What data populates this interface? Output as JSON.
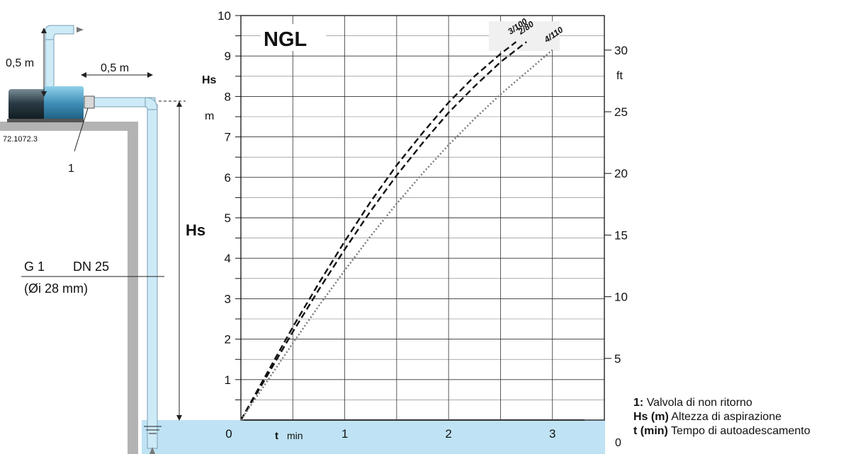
{
  "diagram": {
    "pump_code": "72.1072.3",
    "height_label_left": "0,5 m",
    "length_label_top": "0,5 m",
    "valve_marker": "1",
    "suction_label": "Hs",
    "pipe_thread": "G 1",
    "pipe_dn": "DN 25",
    "pipe_inner_diameter": "(Øi 28 mm)"
  },
  "chart_data": {
    "type": "line",
    "title": "NGL",
    "xlabel": "t",
    "xunit": "min",
    "ylabel": "Hs",
    "yunit": "m",
    "y2unit": "ft",
    "xlim": [
      0,
      3.5
    ],
    "ylim": [
      0,
      10
    ],
    "y2lim": [
      0,
      32.8
    ],
    "x_ticks": [
      0,
      1,
      2,
      3
    ],
    "y_ticks": [
      1,
      2,
      3,
      4,
      5,
      6,
      7,
      8,
      9,
      10
    ],
    "y2_ticks": [
      5,
      10,
      15,
      20,
      25,
      30
    ],
    "grid": true,
    "series": [
      {
        "name": "3/100",
        "style": "dashed",
        "color": "#111111",
        "x": [
          0,
          0.25,
          0.5,
          0.75,
          1.0,
          1.25,
          1.5,
          1.75,
          2.0,
          2.25,
          2.5,
          2.65
        ],
        "y": [
          0,
          1.15,
          2.3,
          3.38,
          4.42,
          5.4,
          6.3,
          7.1,
          7.85,
          8.5,
          9.05,
          9.35
        ]
      },
      {
        "name": "2/80",
        "style": "dashed",
        "color": "#111111",
        "x": [
          0,
          0.25,
          0.5,
          0.75,
          1.0,
          1.25,
          1.5,
          1.75,
          2.0,
          2.25,
          2.5,
          2.75
        ],
        "y": [
          0,
          1.08,
          2.18,
          3.22,
          4.22,
          5.17,
          6.05,
          6.85,
          7.6,
          8.25,
          8.85,
          9.35
        ]
      },
      {
        "name": "4/110",
        "style": "dotted",
        "color": "#777777",
        "x": [
          0,
          0.25,
          0.5,
          0.75,
          1.0,
          1.25,
          1.5,
          1.75,
          2.0,
          2.25,
          2.5,
          2.75,
          3.0
        ],
        "y": [
          0,
          0.95,
          1.9,
          2.82,
          3.7,
          4.55,
          5.35,
          6.1,
          6.8,
          7.45,
          8.05,
          8.6,
          9.15
        ]
      }
    ]
  },
  "legend": [
    {
      "key": "1:",
      "text": "Valvola di non ritorno"
    },
    {
      "key": "Hs (m)",
      "text": "Altezza di aspirazione"
    },
    {
      "key": "t (min)",
      "text": "Tempo di autoadescamento"
    }
  ]
}
